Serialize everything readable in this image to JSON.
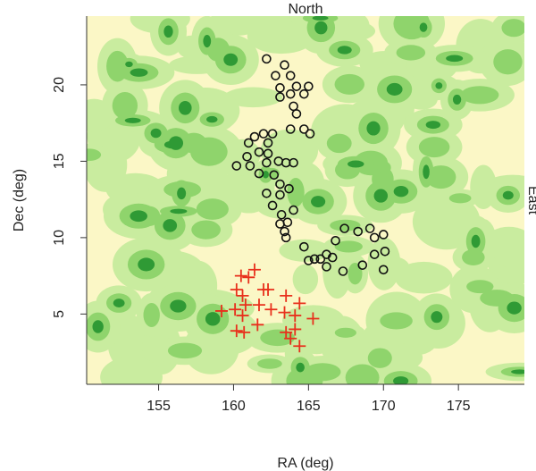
{
  "chart_data": {
    "type": "scatter",
    "title": "North",
    "x_label": "RA (deg)",
    "y_label": "Dec (deg)",
    "right_label": "East",
    "xlim": [
      150.2,
      179.4
    ],
    "ylim": [
      0.4,
      24.5
    ],
    "xticks": [
      155,
      160,
      165,
      170,
      175
    ],
    "yticks": [
      5,
      10,
      15,
      20
    ],
    "series": [
      {
        "color": "#111111",
        "marker": "circle",
        "x": [
          162.2,
          163.4,
          162.8,
          163.8,
          164.2,
          165.0,
          163.1,
          163.8,
          164.7,
          164.0,
          163.1,
          164.2,
          164.7,
          165.1,
          163.8,
          161.4,
          162.0,
          162.6,
          161.0,
          162.3,
          160.9,
          161.7,
          162.3,
          162.2,
          160.2,
          161.1,
          163.0,
          163.5,
          164.0,
          162.7,
          161.7,
          163.1,
          162.2,
          163.1,
          163.7,
          162.6,
          163.2,
          164.0,
          163.1,
          163.6,
          163.4,
          163.5,
          164.7,
          165.0,
          165.4,
          165.8,
          166.2,
          166.6,
          166.8,
          167.4,
          166.2,
          167.3,
          168.3,
          169.1,
          169.4,
          170.0,
          169.4,
          168.6,
          170.0,
          170.1
        ],
        "values": [
          21.7,
          21.3,
          20.6,
          20.6,
          19.9,
          19.9,
          19.8,
          19.4,
          19.4,
          18.6,
          19.2,
          18.1,
          17.1,
          16.8,
          17.1,
          16.6,
          16.8,
          16.8,
          16.2,
          16.2,
          15.3,
          15.6,
          15.5,
          14.9,
          14.7,
          14.7,
          15.0,
          14.9,
          14.9,
          14.1,
          14.2,
          13.5,
          12.9,
          12.8,
          13.2,
          12.1,
          11.5,
          11.8,
          10.9,
          11.0,
          10.4,
          10.0,
          9.4,
          8.5,
          8.6,
          8.6,
          8.9,
          8.7,
          9.8,
          10.6,
          8.1,
          7.8,
          10.4,
          10.6,
          10.0,
          10.2,
          8.9,
          8.2,
          7.9,
          9.1
        ]
      },
      {
        "color": "#e8301c",
        "marker": "cross",
        "x": [
          160.5,
          161.4,
          161.0,
          160.2,
          162.0,
          162.3,
          160.6,
          160.1,
          159.2,
          160.8,
          161.7,
          162.5,
          163.5,
          164.4,
          163.4,
          164.1,
          165.3,
          160.6,
          161.6,
          160.7,
          160.2,
          163.5,
          163.8,
          164.1,
          164.4
        ],
        "values": [
          7.5,
          7.9,
          7.4,
          6.6,
          6.6,
          6.6,
          6.2,
          5.3,
          5.2,
          5.6,
          5.6,
          5.3,
          6.2,
          5.7,
          5.1,
          4.9,
          4.7,
          4.9,
          4.3,
          3.8,
          3.9,
          3.8,
          3.4,
          4.0,
          2.9
        ]
      }
    ]
  }
}
